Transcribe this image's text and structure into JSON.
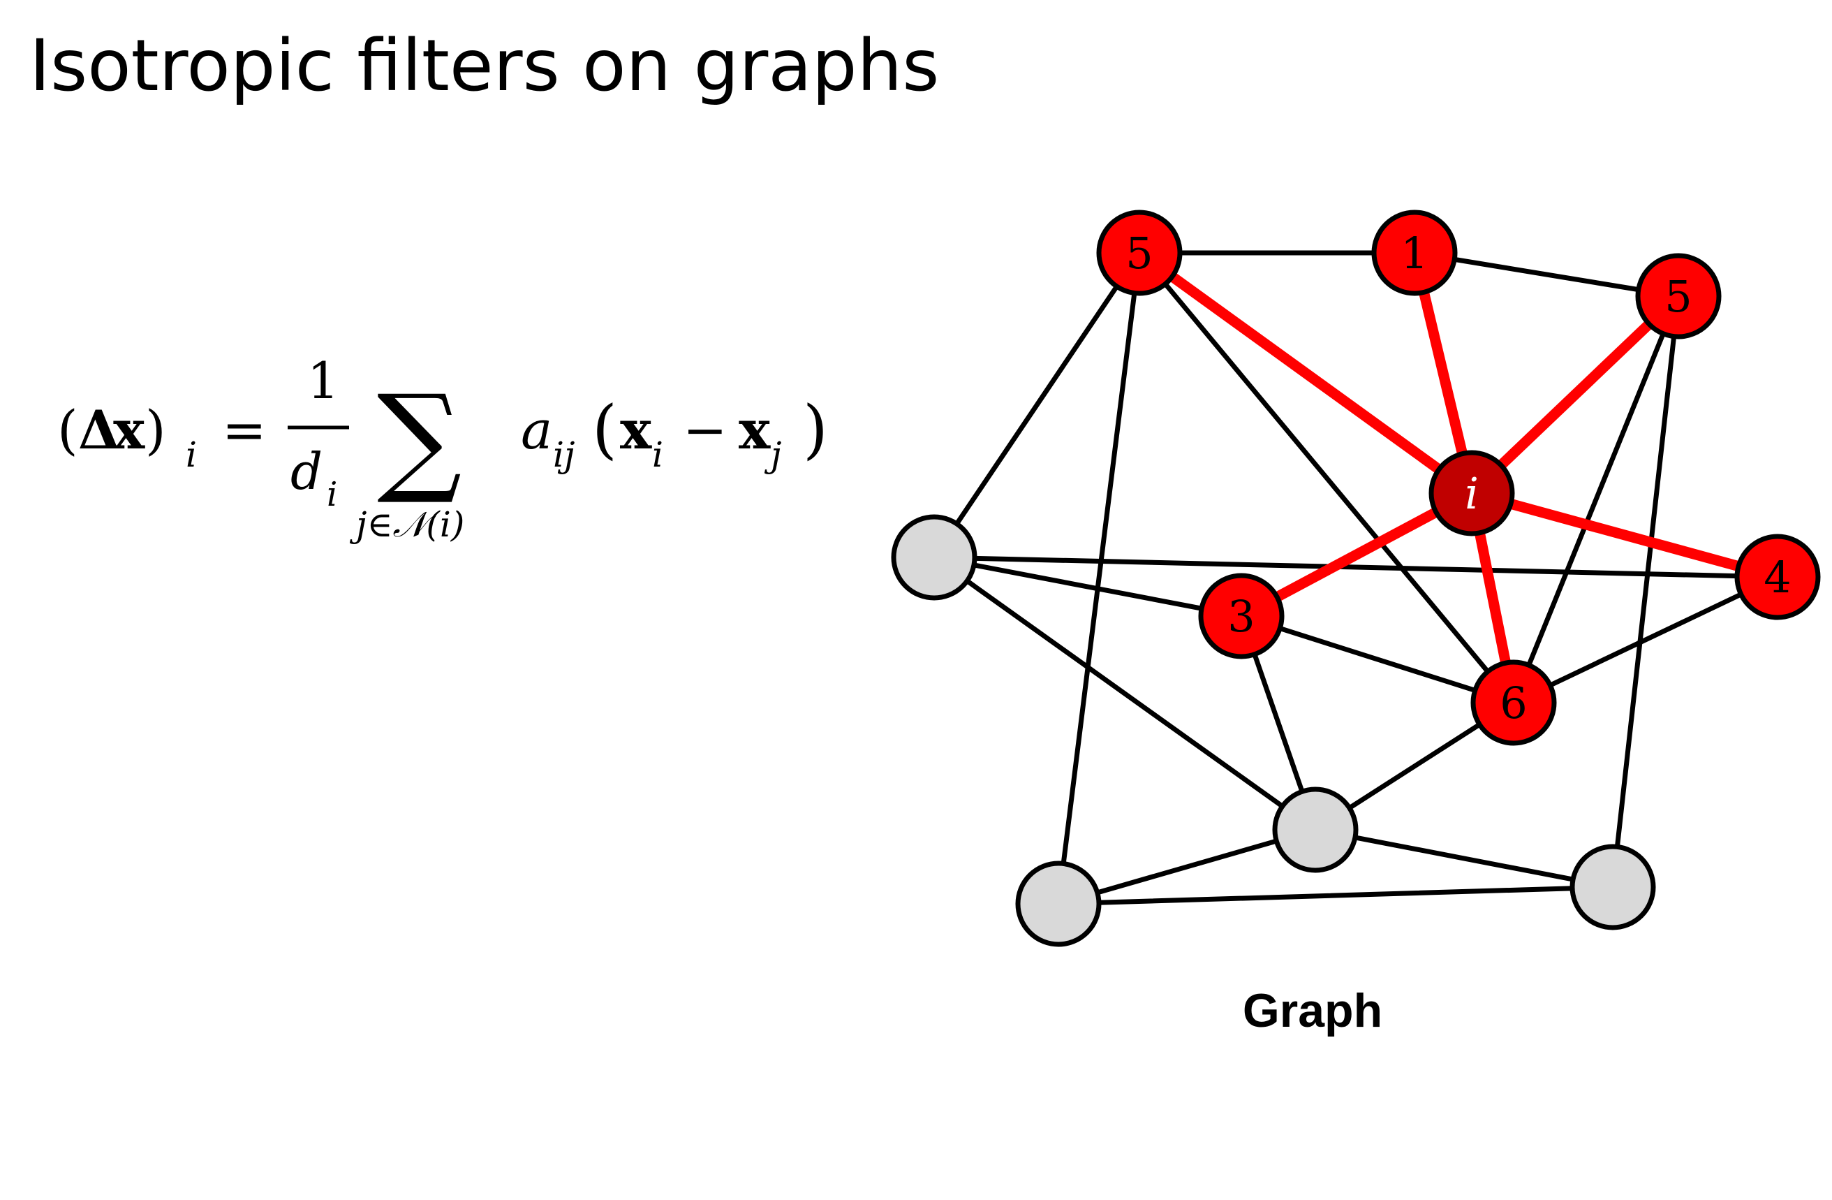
{
  "title": "Isotropic filters on graphs",
  "caption": "Graph",
  "formula": {
    "lhs_open": "(",
    "lhs_delta": "Δ",
    "lhs_x": "x",
    "lhs_close": ")",
    "lhs_sub": "i",
    "equals": "=",
    "frac_num": "1",
    "frac_den": "d",
    "frac_den_sub": "i",
    "sum_symbol": "∑",
    "sum_lower": "j∈𝒩(i)",
    "coef": "a",
    "coef_sub": "ij",
    "paren_open": "(",
    "xi": "x",
    "xi_sub": "i",
    "minus": "−",
    "xj": "x",
    "xj_sub": "j",
    "paren_close": ")"
  },
  "colors": {
    "neighbor_fill": "#ff0000",
    "center_fill": "#c00000",
    "other_fill": "#d9d9d9",
    "highlight_edge": "#ff0000",
    "edge": "#000000",
    "center_label": "#ffffff"
  },
  "nodes": [
    {
      "id": "n5a",
      "label": "5",
      "type": "neighbor"
    },
    {
      "id": "n1",
      "label": "1",
      "type": "neighbor"
    },
    {
      "id": "n5b",
      "label": "5",
      "type": "neighbor"
    },
    {
      "id": "ni",
      "label": "i",
      "type": "center"
    },
    {
      "id": "n4",
      "label": "4",
      "type": "neighbor"
    },
    {
      "id": "n3",
      "label": "3",
      "type": "neighbor"
    },
    {
      "id": "n6",
      "label": "6",
      "type": "neighbor"
    },
    {
      "id": "g1",
      "label": "",
      "type": "other"
    },
    {
      "id": "g2",
      "label": "",
      "type": "other"
    },
    {
      "id": "g3",
      "label": "",
      "type": "other"
    },
    {
      "id": "g4",
      "label": "",
      "type": "other"
    }
  ],
  "edges": [
    {
      "from": "n5a",
      "to": "n1",
      "highlight": false
    },
    {
      "from": "n1",
      "to": "n5b",
      "highlight": false
    },
    {
      "from": "n5a",
      "to": "g1",
      "highlight": false
    },
    {
      "from": "n5a",
      "to": "g3",
      "highlight": false
    },
    {
      "from": "n5a",
      "to": "n6",
      "highlight": false
    },
    {
      "from": "n5b",
      "to": "n6",
      "highlight": false
    },
    {
      "from": "n5b",
      "to": "g4",
      "highlight": false
    },
    {
      "from": "g1",
      "to": "n4",
      "highlight": false
    },
    {
      "from": "g1",
      "to": "n3",
      "highlight": false
    },
    {
      "from": "g1",
      "to": "g2",
      "highlight": false
    },
    {
      "from": "n3",
      "to": "n6",
      "highlight": false
    },
    {
      "from": "n3",
      "to": "g2",
      "highlight": false
    },
    {
      "from": "n4",
      "to": "n6",
      "highlight": false
    },
    {
      "from": "n6",
      "to": "g2",
      "highlight": false
    },
    {
      "from": "g2",
      "to": "g3",
      "highlight": false
    },
    {
      "from": "g2",
      "to": "g4",
      "highlight": false
    },
    {
      "from": "g3",
      "to": "g4",
      "highlight": false
    },
    {
      "from": "ni",
      "to": "n5a",
      "highlight": true
    },
    {
      "from": "ni",
      "to": "n1",
      "highlight": true
    },
    {
      "from": "ni",
      "to": "n5b",
      "highlight": true
    },
    {
      "from": "ni",
      "to": "n4",
      "highlight": true
    },
    {
      "from": "ni",
      "to": "n3",
      "highlight": true
    },
    {
      "from": "ni",
      "to": "n6",
      "highlight": true
    }
  ]
}
